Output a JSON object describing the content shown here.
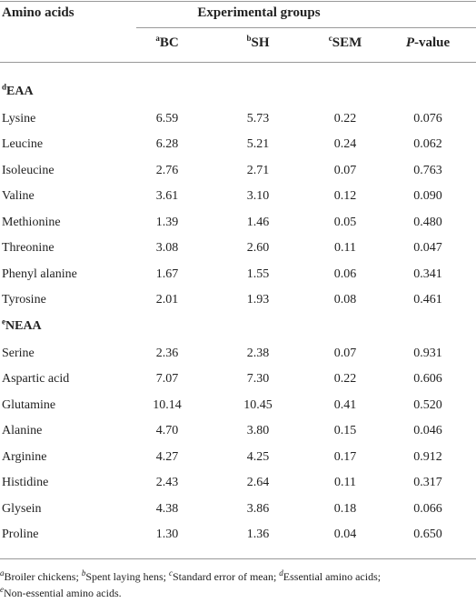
{
  "table": {
    "header": {
      "row_label": "Amino acids",
      "group_title": "Experimental groups",
      "columns": [
        {
          "sup": "a",
          "text": "BC"
        },
        {
          "sup": "b",
          "text": "SH"
        },
        {
          "sup": "c",
          "text": "SEM"
        },
        {
          "italic": "P",
          "text": "-value"
        }
      ]
    },
    "sections": [
      {
        "sup": "d",
        "label": "EAA",
        "rows": [
          [
            "Lysine",
            "6.59",
            "5.73",
            "0.22",
            "0.076"
          ],
          [
            "Leucine",
            "6.28",
            "5.21",
            "0.24",
            "0.062"
          ],
          [
            "Isoleucine",
            "2.76",
            "2.71",
            "0.07",
            "0.763"
          ],
          [
            "Valine",
            "3.61",
            "3.10",
            "0.12",
            "0.090"
          ],
          [
            "Methionine",
            "1.39",
            "1.46",
            "0.05",
            "0.480"
          ],
          [
            "Threonine",
            "3.08",
            "2.60",
            "0.11",
            "0.047"
          ],
          [
            "Phenyl alanine",
            "1.67",
            "1.55",
            "0.06",
            "0.341"
          ],
          [
            "Tyrosine",
            "2.01",
            "1.93",
            "0.08",
            "0.461"
          ]
        ]
      },
      {
        "sup": "e",
        "label": "NEAA",
        "rows": [
          [
            "Serine",
            "2.36",
            "2.38",
            "0.07",
            "0.931"
          ],
          [
            "Aspartic acid",
            "7.07",
            "7.30",
            "0.22",
            "0.606"
          ],
          [
            "Glutamine",
            "10.14",
            "10.45",
            "0.41",
            "0.520"
          ],
          [
            "Alanine",
            "4.70",
            "3.80",
            "0.15",
            "0.046"
          ],
          [
            "Arginine",
            "4.27",
            "4.25",
            "0.17",
            "0.912"
          ],
          [
            "Histidine",
            "2.43",
            "2.64",
            "0.11",
            "0.317"
          ],
          [
            "Glysein",
            "4.38",
            "3.86",
            "0.18",
            "0.066"
          ],
          [
            "Proline",
            "1.30",
            "1.36",
            "0.04",
            "0.650"
          ]
        ]
      }
    ],
    "footnotes": [
      [
        {
          "sup": "a",
          "text": "Broiler chickens; "
        },
        {
          "sup": "b",
          "text": "Spent laying hens; "
        },
        {
          "sup": "c",
          "text": "Standard error of mean; "
        },
        {
          "sup": "d",
          "text": "Essential amino acids;"
        }
      ],
      [
        {
          "sup": "e",
          "text": "Non-essential amino acids."
        }
      ]
    ]
  }
}
